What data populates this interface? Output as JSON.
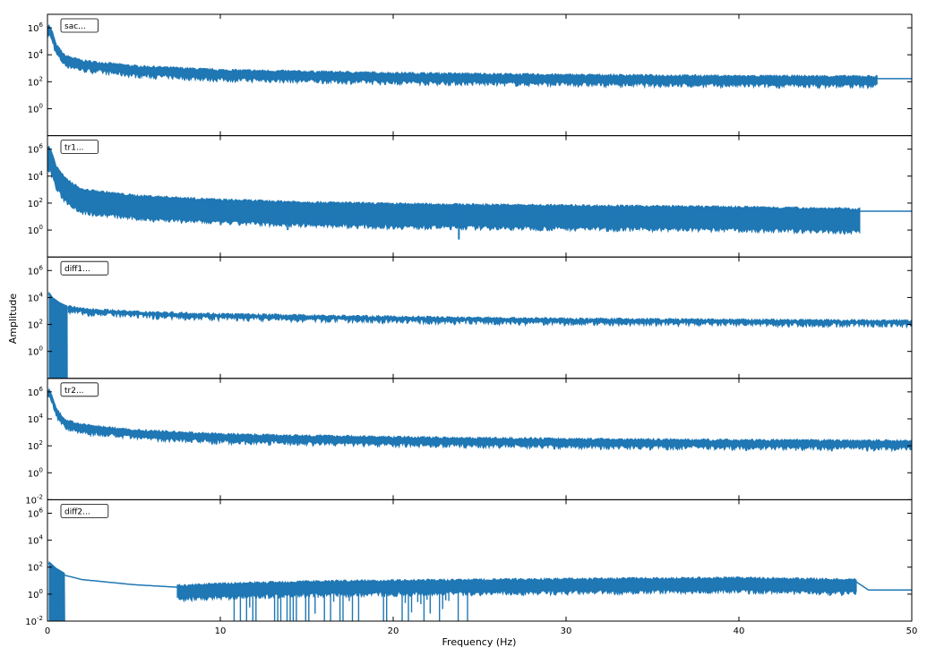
{
  "figure": {
    "xlabel": "Frequency (Hz)",
    "ylabel": "Amplitude"
  },
  "colors": {
    "line": "#1f77b4",
    "axes": "#000000"
  },
  "chart_data": [
    {
      "type": "line",
      "legend": "sac...",
      "legend_position": "top-left",
      "xlim": [
        0,
        50
      ],
      "ylim": [
        0.01,
        10000000
      ],
      "yscale": "log",
      "xticks": [],
      "yticks": [
        1,
        100,
        10000,
        1000000
      ],
      "ytick_labels": [
        "10^0",
        "10^2",
        "10^4",
        "10^6"
      ],
      "x": [
        0.1,
        0.3,
        0.5,
        1,
        2,
        5,
        10,
        20,
        30,
        40,
        47,
        50
      ],
      "y": [
        1000000,
        300000,
        40000,
        6000,
        2500,
        1000,
        500,
        300,
        220,
        180,
        170,
        170
      ],
      "noise": {
        "min_x": 0,
        "max_x": 48,
        "lower_factor": 0.3
      }
    },
    {
      "type": "line",
      "legend": "tr1...",
      "legend_position": "top-left",
      "xlim": [
        0,
        50
      ],
      "ylim": [
        0.01,
        10000000
      ],
      "yscale": "log",
      "xticks": [],
      "yticks": [
        1,
        100,
        10000,
        1000000
      ],
      "ytick_labels": [
        "10^0",
        "10^2",
        "10^4",
        "10^6"
      ],
      "x": [
        0.1,
        0.3,
        0.5,
        1,
        2,
        5,
        10,
        15,
        20,
        30,
        40,
        47,
        50
      ],
      "y": [
        1000000,
        300000,
        40000,
        5000,
        700,
        250,
        120,
        80,
        60,
        45,
        35,
        25,
        25
      ],
      "noise": {
        "min_x": 0,
        "max_x": 47,
        "lower_factor": 0.03
      },
      "dips": [
        {
          "x": 13.9,
          "y": 1
        },
        {
          "x": 23.8,
          "y": 0.2
        },
        {
          "x": 9.5,
          "y": 5
        }
      ]
    },
    {
      "type": "line",
      "legend": "diff1...",
      "legend_position": "top-left",
      "xlim": [
        0,
        50
      ],
      "ylim": [
        0.01,
        10000000
      ],
      "yscale": "log",
      "xticks": [],
      "yticks": [
        1,
        100,
        10000,
        1000000
      ],
      "ytick_labels": [
        "10^0",
        "10^2",
        "10^4",
        "10^6"
      ],
      "x": [
        0.05,
        0.3,
        0.7,
        1.2,
        2,
        5,
        10,
        20,
        30,
        40,
        50
      ],
      "y": [
        20000,
        7000,
        3000,
        1500,
        1000,
        600,
        400,
        250,
        180,
        150,
        130
      ],
      "noise": {
        "min_x": 1.2,
        "max_x": 50,
        "lower_factor": 0.7
      },
      "filled_band": {
        "x": [
          0.1,
          1.15
        ],
        "y_bottom": 0.01
      }
    },
    {
      "type": "line",
      "legend": "tr2...",
      "legend_position": "top-left",
      "xlim": [
        0,
        50
      ],
      "ylim": [
        0.01,
        10000000
      ],
      "yscale": "log",
      "xticks": [],
      "yticks": [
        0.01,
        1,
        100,
        10000,
        1000000
      ],
      "ytick_labels": [
        "10^-2",
        "10^0",
        "10^2",
        "10^4",
        "10^6"
      ],
      "x": [
        0.1,
        0.3,
        0.5,
        1,
        2,
        5,
        10,
        20,
        30,
        40,
        50
      ],
      "y": [
        1000000,
        300000,
        40000,
        6000,
        2500,
        1000,
        500,
        300,
        220,
        180,
        160
      ],
      "noise": {
        "min_x": 0,
        "max_x": 50,
        "lower_factor": 0.4
      }
    },
    {
      "type": "line",
      "legend": "diff2...",
      "legend_position": "top-left",
      "xlim": [
        0,
        50
      ],
      "ylim": [
        0.01,
        10000000
      ],
      "yscale": "log",
      "xticks": [
        0,
        10,
        20,
        30,
        40,
        50
      ],
      "xtick_labels": [
        "0",
        "10",
        "20",
        "30",
        "40",
        "50"
      ],
      "yticks": [
        0.01,
        1,
        100,
        10000,
        1000000
      ],
      "ytick_labels": [
        "10^-2",
        "10^0",
        "10^2",
        "10^4",
        "10^6"
      ],
      "x": [
        0.05,
        0.5,
        1,
        2,
        5,
        8,
        10,
        15,
        20,
        30,
        40,
        46.8,
        47.5,
        50
      ],
      "y": [
        200,
        60,
        25,
        12,
        5,
        3,
        4,
        6,
        7,
        9,
        11,
        8,
        2,
        2
      ],
      "noise": {
        "min_x": 7.5,
        "max_x": 46.8,
        "lower_factor": 0.15
      },
      "filled_band": {
        "x": [
          0.1,
          1.0
        ],
        "y_bottom": 0.01
      },
      "dropout_region": [
        10.8,
        24.5
      ]
    }
  ]
}
